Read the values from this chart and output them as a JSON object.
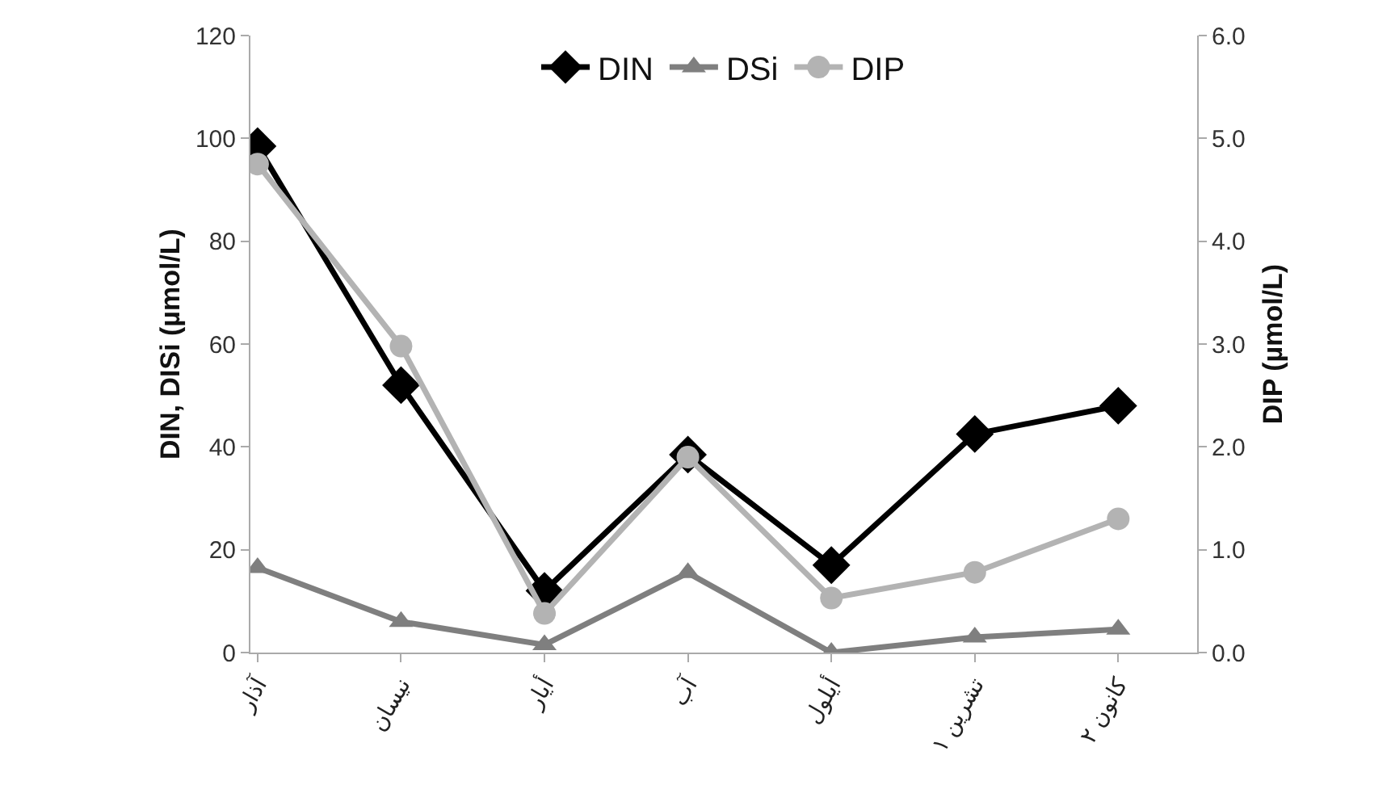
{
  "chart_data": {
    "type": "line",
    "ylabel": "DIN, DISi (µmol/L)",
    "y2label": "DIP (µmol/L)",
    "categories": [
      "آذار",
      "نيسان",
      "أيار",
      "آب",
      "أيلول",
      "تشرين ١",
      "كانون ٢"
    ],
    "series": [
      {
        "name": "DIN",
        "color": "#000000",
        "marker": "diamond",
        "values": [
          98.5,
          52,
          12,
          38.5,
          17,
          42.5,
          48
        ]
      },
      {
        "name": "DSi",
        "color": "#7f7f7f",
        "marker": "triangle",
        "values": [
          16.5,
          6,
          1.5,
          15.5,
          0,
          3,
          4.5
        ]
      },
      {
        "name": "DIP",
        "color": "#b3b3b3",
        "marker": "circle",
        "axis": "y2",
        "values": [
          4.75,
          2.98,
          0.38,
          1.9,
          0.53,
          0.78,
          1.3
        ]
      }
    ],
    "ylim": [
      0,
      120
    ],
    "yticks": [
      0,
      20,
      40,
      60,
      80,
      100,
      120
    ],
    "y2lim": [
      0,
      6
    ],
    "y2ticks": [
      {
        "value": 0,
        "label": "0.0"
      },
      {
        "value": 1,
        "label": "1.0"
      },
      {
        "value": 2,
        "label": "2.0"
      },
      {
        "value": 3,
        "label": "3.0"
      },
      {
        "value": 4,
        "label": "4.0"
      },
      {
        "value": 5,
        "label": "5.0"
      },
      {
        "value": 6,
        "label": "6.0"
      }
    ],
    "grid": false,
    "legend": "top",
    "line_style": "solid"
  }
}
